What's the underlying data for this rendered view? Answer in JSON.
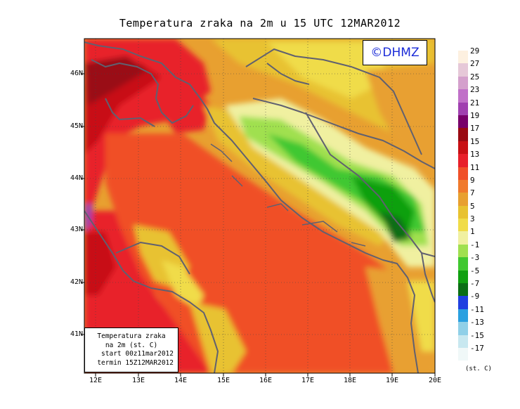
{
  "title": "Temperatura zraka na 2m u 15 UTC 12MAR2012",
  "logo": "©DHMZ",
  "info_box": {
    "line1": "Temperatura zraka",
    "line2": "na 2m (st. C)",
    "line3": "start 00z11mar2012",
    "line4": "termin 15Z12MAR2012"
  },
  "axes": {
    "lat_labels": [
      "46N",
      "45N",
      "44N",
      "43N",
      "42N",
      "41N"
    ],
    "lon_labels": [
      "12E",
      "13E",
      "14E",
      "15E",
      "16E",
      "17E",
      "18E",
      "19E",
      "20E"
    ]
  },
  "legend": {
    "units": "(st. C)",
    "labels": [
      "29",
      "27",
      "25",
      "23",
      "21",
      "19",
      "17",
      "15",
      "13",
      "11",
      "9",
      "7",
      "5",
      "3",
      "1",
      "-1",
      "-3",
      "-5",
      "-7",
      "-9",
      "-11",
      "-13",
      "-15",
      "-17"
    ],
    "colors": [
      "#fdf0e0",
      "#e6c8d8",
      "#d4a0cc",
      "#c070c8",
      "#a040b0",
      "#78006a",
      "#9a0a12",
      "#c81014",
      "#e8202a",
      "#f05028",
      "#f07a2c",
      "#e8a030",
      "#e8c230",
      "#f0dc48",
      "#f0f0a0",
      "#a0e050",
      "#40c830",
      "#10a010",
      "#0a6e14",
      "#2040e0",
      "#2aa0e0",
      "#90d0e8",
      "#c8e8f0",
      "#f0f8f8"
    ]
  }
}
